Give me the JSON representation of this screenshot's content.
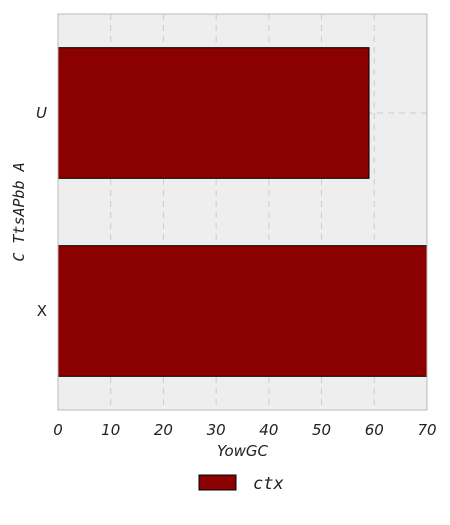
{
  "chart_data": {
    "type": "bar",
    "orientation": "horizontal",
    "categories": [
      "U",
      "X"
    ],
    "series": [
      {
        "name": "ctx",
        "values": [
          59,
          70
        ]
      }
    ],
    "xlabel": "YowGC",
    "ylabel": "C TtsAPbb A",
    "xlim": [
      0,
      70
    ],
    "xticks": [
      0,
      10,
      20,
      30,
      40,
      50,
      60,
      70
    ],
    "grid": true,
    "legend_position": "bottom-center",
    "colors": {
      "bar": "#8b0000",
      "plot_bg": "#eeeeee",
      "grid": "#cccccc",
      "frame": "#bbbbbb"
    }
  }
}
